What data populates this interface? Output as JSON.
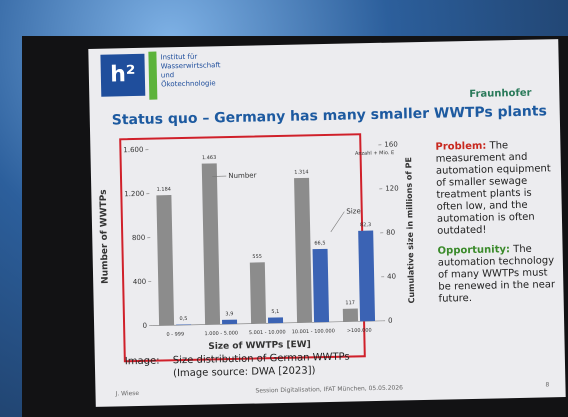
{
  "slide": {
    "logo_mark": "h²",
    "institute": "Institut für Wasserwirtschaft und Ökotechnologie",
    "brand": "Fraunhofer",
    "problem_label": "Problem:",
    "problem_text": "The measurement and automation equipment of smaller sewage treatment plants is often low, and the automation is often outdated!",
    "opportunity_label": "Opportunity:",
    "opportunity_text": "The automation technology of many WWTPs must be renewed in the near future.",
    "caption_label": "Image:",
    "caption_text": "Size distribution of German WWTPs",
    "caption_source": "(Image source: DWA [2023])",
    "footer_author": "J. Wiese",
    "footer_event": "Session Digitalisation, IFAT München, 05.05.2026",
    "page_number": "8"
  },
  "chart_data": {
    "type": "bar",
    "title": "Status quo – Germany has many smaller WWTPs plants",
    "x_label": "Size of WWTPs [EW]",
    "y_label": "Number of WWTPs",
    "y2_label": "Cumulative size in millions of PE",
    "legend_note": "Anzahl + Mio. E",
    "annotations": [
      "Number",
      "Size"
    ],
    "categories": [
      "0 - 999",
      "1.000 - 5.000",
      "5.001 - 10.000",
      "10.001 - 100.000",
      ">100.000"
    ],
    "series": [
      {
        "name": "Number",
        "color": "#8c8c8c",
        "values": [
          1184,
          1463,
          555,
          1314,
          117
        ],
        "value_labels": [
          "1.184",
          "1.463",
          "555",
          "1.314",
          "117"
        ]
      },
      {
        "name": "Size",
        "color": "#3b63b4",
        "axis": "y2",
        "values": [
          0.5,
          3.9,
          5.1,
          66.5,
          82.3
        ],
        "value_labels": [
          "0,5",
          "3,9",
          "5,1",
          "66,5",
          "82,3"
        ]
      }
    ],
    "ylim": [
      0,
      1600
    ],
    "yticks": [
      0,
      400,
      800,
      {
        "value": 1200,
        "label": "1.200"
      },
      {
        "value": 1600,
        "label": "1.600"
      }
    ],
    "y2lim": [
      0,
      160
    ],
    "y2ticks": [
      0,
      40,
      80,
      120,
      160
    ]
  }
}
